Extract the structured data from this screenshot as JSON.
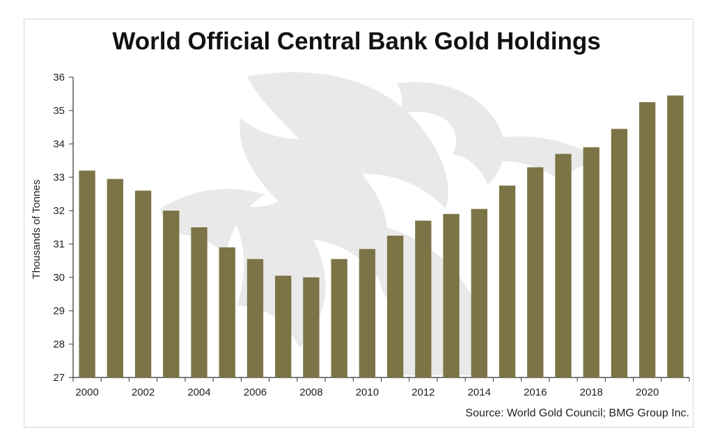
{
  "page": {
    "title": "World Official Central Bank Gold Holdings",
    "source": "Source: World Gold Council; BMG Group Inc."
  },
  "colors": {
    "bar": "#7c7446",
    "axis": "#333333",
    "watermark": "#e9e9e9"
  },
  "chart_data": {
    "type": "bar",
    "title": "World Official Central Bank Gold Holdings",
    "xlabel": "",
    "ylabel": "Thousands of Tonnes",
    "ylim": [
      27,
      36
    ],
    "yticks": [
      27,
      28,
      29,
      30,
      31,
      32,
      33,
      34,
      35,
      36
    ],
    "categories": [
      "2000",
      "2001",
      "2002",
      "2003",
      "2004",
      "2005",
      "2006",
      "2007",
      "2008",
      "2009",
      "2010",
      "2011",
      "2012",
      "2013",
      "2014",
      "2015",
      "2016",
      "2017",
      "2018",
      "2019",
      "2020",
      "2021"
    ],
    "xtick_labels": [
      "2000",
      "",
      "2002",
      "",
      "2004",
      "",
      "2006",
      "",
      "2008",
      "",
      "2010",
      "",
      "2012",
      "",
      "2014",
      "",
      "2016",
      "",
      "2018",
      "",
      "2020",
      ""
    ],
    "values": [
      33.2,
      32.95,
      32.6,
      32.0,
      31.5,
      30.9,
      30.55,
      30.05,
      30.0,
      30.55,
      30.85,
      31.25,
      31.7,
      31.9,
      32.05,
      32.75,
      33.3,
      33.7,
      33.9,
      34.45,
      35.25,
      35.45
    ],
    "grid": false,
    "legend": "none"
  }
}
